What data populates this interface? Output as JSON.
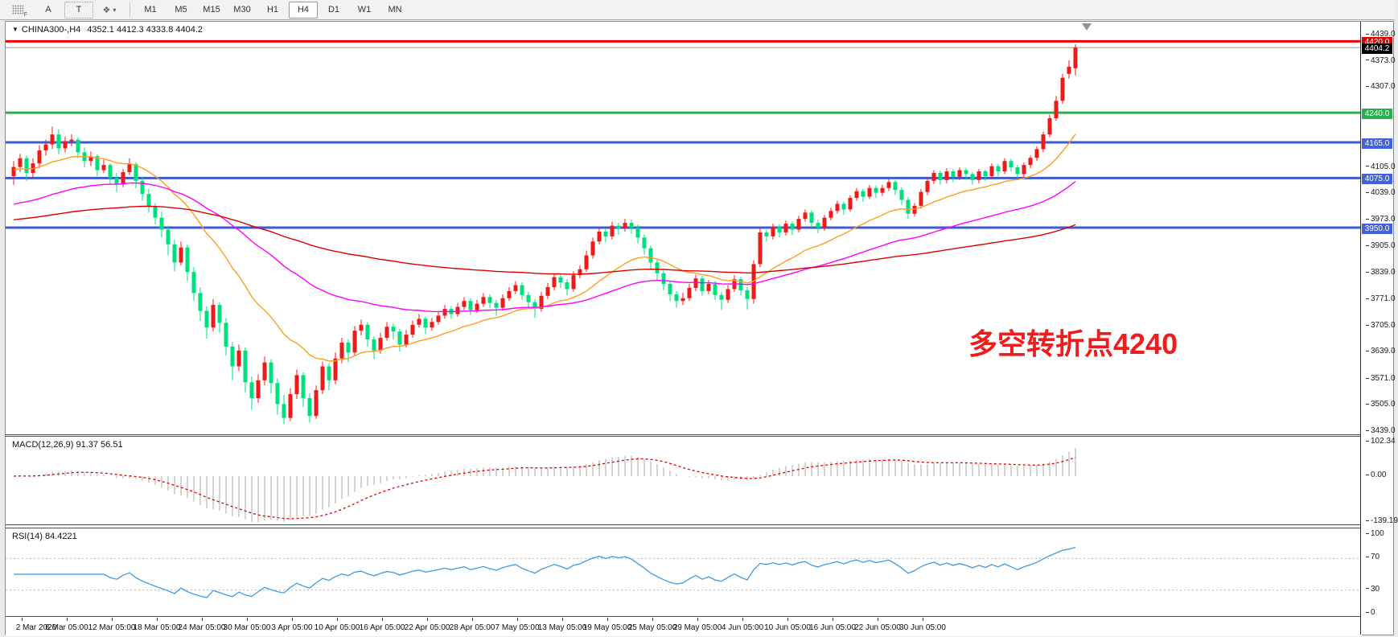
{
  "toolbar": {
    "cursor_label": "A",
    "text_label": "T",
    "style_glyph": "❖",
    "caret_glyph": "▾",
    "timeframes": [
      "M1",
      "M5",
      "M15",
      "M30",
      "H1",
      "H4",
      "D1",
      "W1",
      "MN"
    ],
    "active_timeframe": "H4"
  },
  "chart": {
    "title_symbol": "CHINA300-,H4",
    "title_ohlc": "4352.1 4412.3 4333.8 4404.2",
    "title_caret": "▼",
    "annotation": {
      "text": "多空转折点4240",
      "color": "#ee1c1c"
    },
    "colors": {
      "up": "#ee1a1a",
      "down": "#00df7d",
      "macd_hist": "#c2c2c2",
      "macd_signal": "#e00000",
      "rsi_line": "#3f9be0",
      "level_dotted": "#b8b8b8"
    },
    "hlines": [
      {
        "price": 4420.0,
        "label": "4420.0",
        "color": "#f00000",
        "width": 3,
        "label_bg": "#e00000"
      },
      {
        "price": 4240.0,
        "label": "4240.0",
        "color": "#25b24e",
        "width": 3,
        "label_bg": "#25b24e"
      },
      {
        "price": 4165.0,
        "label": "4165.0",
        "color": "#3c59d6",
        "width": 3,
        "label_bg": "#4161dd"
      },
      {
        "price": 4075.0,
        "label": "4075.0",
        "color": "#3c59d6",
        "width": 3,
        "label_bg": "#4161dd"
      },
      {
        "price": 3950.0,
        "label": "3950.0",
        "color": "#3c59d6",
        "width": 3,
        "label_bg": "#4161dd"
      }
    ],
    "current_price": {
      "price": 4404.2,
      "label": "4404.2",
      "color": "#8a97a3",
      "label_bg": "#000000"
    },
    "price_ticks": [
      "4439.0",
      "4373.0",
      "4307.0",
      "4105.0",
      "4039.0",
      "3973.0",
      "3905.0",
      "3839.0",
      "3771.0",
      "3705.0",
      "3639.0",
      "3571.0",
      "3505.0",
      "3439.0"
    ],
    "moving_averages": [
      {
        "name": "fast-ma",
        "period": 20,
        "seed": 4095,
        "color": "#ff9d1e"
      },
      {
        "name": "mid-ma",
        "period": 55,
        "seed": 4005,
        "color": "#ff00ff"
      },
      {
        "name": "slow-ma",
        "period": 150,
        "seed": 3968,
        "color": "#dd0000"
      }
    ],
    "candles": [
      [
        4080,
        4118,
        4058,
        4103
      ],
      [
        4103,
        4136,
        4090,
        4125
      ],
      [
        4125,
        4132,
        4068,
        4088
      ],
      [
        4088,
        4125,
        4075,
        4112
      ],
      [
        4112,
        4158,
        4100,
        4145
      ],
      [
        4145,
        4172,
        4132,
        4160
      ],
      [
        4160,
        4205,
        4148,
        4185
      ],
      [
        4185,
        4198,
        4135,
        4150
      ],
      [
        4150,
        4180,
        4140,
        4168
      ],
      [
        4168,
        4186,
        4155,
        4172
      ],
      [
        4172,
        4178,
        4125,
        4140
      ],
      [
        4140,
        4152,
        4102,
        4118
      ],
      [
        4118,
        4142,
        4105,
        4130
      ],
      [
        4130,
        4135,
        4080,
        4095
      ],
      [
        4095,
        4122,
        4088,
        4108
      ],
      [
        4108,
        4112,
        4058,
        4075
      ],
      [
        4075,
        4088,
        4040,
        4060
      ],
      [
        4060,
        4098,
        4052,
        4090
      ],
      [
        4090,
        4125,
        4082,
        4110
      ],
      [
        4110,
        4115,
        4050,
        4068
      ],
      [
        4068,
        4078,
        4018,
        4035
      ],
      [
        4035,
        4048,
        3988,
        4005
      ],
      [
        4005,
        4012,
        3958,
        3975
      ],
      [
        3975,
        3990,
        3925,
        3945
      ],
      [
        3945,
        3955,
        3880,
        3908
      ],
      [
        3908,
        3920,
        3840,
        3862
      ],
      [
        3862,
        3915,
        3855,
        3900
      ],
      [
        3900,
        3908,
        3815,
        3838
      ],
      [
        3838,
        3850,
        3765,
        3785
      ],
      [
        3785,
        3800,
        3715,
        3740
      ],
      [
        3740,
        3752,
        3670,
        3698
      ],
      [
        3698,
        3770,
        3688,
        3755
      ],
      [
        3755,
        3762,
        3685,
        3710
      ],
      [
        3710,
        3722,
        3628,
        3650
      ],
      [
        3650,
        3662,
        3565,
        3600
      ],
      [
        3600,
        3655,
        3588,
        3640
      ],
      [
        3640,
        3648,
        3535,
        3560
      ],
      [
        3560,
        3575,
        3490,
        3520
      ],
      [
        3520,
        3580,
        3508,
        3565
      ],
      [
        3565,
        3625,
        3552,
        3610
      ],
      [
        3610,
        3618,
        3532,
        3558
      ],
      [
        3558,
        3570,
        3478,
        3505
      ],
      [
        3505,
        3528,
        3455,
        3470
      ],
      [
        3470,
        3545,
        3462,
        3530
      ],
      [
        3530,
        3592,
        3518,
        3578
      ],
      [
        3578,
        3585,
        3498,
        3520
      ],
      [
        3520,
        3532,
        3458,
        3475
      ],
      [
        3475,
        3552,
        3468,
        3540
      ],
      [
        3540,
        3612,
        3530,
        3600
      ],
      [
        3600,
        3608,
        3540,
        3565
      ],
      [
        3565,
        3635,
        3555,
        3620
      ],
      [
        3620,
        3672,
        3608,
        3660
      ],
      [
        3660,
        3668,
        3610,
        3635
      ],
      [
        3635,
        3702,
        3628,
        3690
      ],
      [
        3690,
        3718,
        3678,
        3705
      ],
      [
        3705,
        3712,
        3650,
        3668
      ],
      [
        3668,
        3676,
        3618,
        3640
      ],
      [
        3640,
        3685,
        3632,
        3672
      ],
      [
        3672,
        3712,
        3665,
        3700
      ],
      [
        3700,
        3708,
        3668,
        3688
      ],
      [
        3688,
        3695,
        3638,
        3655
      ],
      [
        3655,
        3692,
        3648,
        3680
      ],
      [
        3680,
        3716,
        3672,
        3705
      ],
      [
        3705,
        3732,
        3698,
        3720
      ],
      [
        3720,
        3726,
        3682,
        3698
      ],
      [
        3698,
        3722,
        3690,
        3712
      ],
      [
        3712,
        3738,
        3705,
        3728
      ],
      [
        3728,
        3755,
        3720,
        3745
      ],
      [
        3745,
        3752,
        3720,
        3732
      ],
      [
        3732,
        3760,
        3725,
        3750
      ],
      [
        3750,
        3775,
        3742,
        3765
      ],
      [
        3765,
        3772,
        3730,
        3742
      ],
      [
        3742,
        3768,
        3735,
        3758
      ],
      [
        3758,
        3785,
        3750,
        3775
      ],
      [
        3775,
        3782,
        3748,
        3760
      ],
      [
        3760,
        3768,
        3728,
        3748
      ],
      [
        3748,
        3782,
        3740,
        3772
      ],
      [
        3772,
        3800,
        3765,
        3790
      ],
      [
        3790,
        3815,
        3782,
        3805
      ],
      [
        3805,
        3812,
        3768,
        3780
      ],
      [
        3780,
        3788,
        3748,
        3762
      ],
      [
        3762,
        3770,
        3722,
        3745
      ],
      [
        3745,
        3788,
        3738,
        3778
      ],
      [
        3778,
        3810,
        3770,
        3800
      ],
      [
        3800,
        3835,
        3792,
        3825
      ],
      [
        3825,
        3832,
        3798,
        3812
      ],
      [
        3812,
        3820,
        3780,
        3795
      ],
      [
        3795,
        3840,
        3788,
        3830
      ],
      [
        3830,
        3855,
        3822,
        3845
      ],
      [
        3845,
        3892,
        3838,
        3880
      ],
      [
        3880,
        3925,
        3872,
        3915
      ],
      [
        3915,
        3950,
        3908,
        3940
      ],
      [
        3940,
        3948,
        3912,
        3928
      ],
      [
        3928,
        3965,
        3920,
        3955
      ],
      [
        3955,
        3962,
        3932,
        3948
      ],
      [
        3948,
        3972,
        3940,
        3962
      ],
      [
        3962,
        3970,
        3935,
        3950
      ],
      [
        3950,
        3958,
        3910,
        3925
      ],
      [
        3925,
        3932,
        3882,
        3898
      ],
      [
        3898,
        3905,
        3845,
        3862
      ],
      [
        3862,
        3870,
        3818,
        3835
      ],
      [
        3835,
        3842,
        3792,
        3808
      ],
      [
        3808,
        3815,
        3765,
        3782
      ],
      [
        3782,
        3790,
        3748,
        3765
      ],
      [
        3765,
        3786,
        3755,
        3772
      ],
      [
        3772,
        3808,
        3765,
        3798
      ],
      [
        3798,
        3832,
        3790,
        3822
      ],
      [
        3822,
        3828,
        3778,
        3790
      ],
      [
        3790,
        3818,
        3782,
        3808
      ],
      [
        3808,
        3814,
        3768,
        3780
      ],
      [
        3780,
        3788,
        3742,
        3768
      ],
      [
        3768,
        3805,
        3760,
        3795
      ],
      [
        3795,
        3830,
        3788,
        3820
      ],
      [
        3820,
        3826,
        3780,
        3792
      ],
      [
        3792,
        3800,
        3744,
        3770
      ],
      [
        3770,
        3868,
        3758,
        3858
      ],
      [
        3858,
        3948,
        3850,
        3938
      ],
      [
        3938,
        3945,
        3915,
        3928
      ],
      [
        3928,
        3960,
        3920,
        3952
      ],
      [
        3952,
        3958,
        3925,
        3938
      ],
      [
        3938,
        3968,
        3930,
        3960
      ],
      [
        3960,
        3966,
        3932,
        3945
      ],
      [
        3945,
        3980,
        3938,
        3972
      ],
      [
        3972,
        3996,
        3965,
        3988
      ],
      [
        3988,
        3994,
        3950,
        3962
      ],
      [
        3962,
        3970,
        3936,
        3950
      ],
      [
        3950,
        3982,
        3942,
        3975
      ],
      [
        3975,
        4000,
        3968,
        3992
      ],
      [
        3992,
        4018,
        3985,
        4010
      ],
      [
        4010,
        4016,
        3982,
        3996
      ],
      [
        3996,
        4032,
        3990,
        4025
      ],
      [
        4025,
        4050,
        4018,
        4042
      ],
      [
        4042,
        4048,
        4015,
        4028
      ],
      [
        4028,
        4058,
        4022,
        4050
      ],
      [
        4050,
        4056,
        4025,
        4038
      ],
      [
        4038,
        4058,
        4030,
        4050
      ],
      [
        4050,
        4072,
        4042,
        4065
      ],
      [
        4065,
        4070,
        4032,
        4045
      ],
      [
        4045,
        4052,
        4008,
        4020
      ],
      [
        4020,
        4028,
        3972,
        3985
      ],
      [
        3985,
        4012,
        3978,
        4005
      ],
      [
        4005,
        4048,
        3998,
        4040
      ],
      [
        4040,
        4075,
        4032,
        4068
      ],
      [
        4068,
        4095,
        4060,
        4088
      ],
      [
        4088,
        4094,
        4058,
        4070
      ],
      [
        4070,
        4100,
        4062,
        4092
      ],
      [
        4092,
        4098,
        4065,
        4078
      ],
      [
        4078,
        4102,
        4070,
        4095
      ],
      [
        4095,
        4101,
        4072,
        4085
      ],
      [
        4085,
        4090,
        4058,
        4070
      ],
      [
        4070,
        4098,
        4062,
        4092
      ],
      [
        4092,
        4097,
        4068,
        4080
      ],
      [
        4080,
        4112,
        4072,
        4105
      ],
      [
        4105,
        4110,
        4080,
        4092
      ],
      [
        4092,
        4125,
        4085,
        4118
      ],
      [
        4118,
        4124,
        4092,
        4102
      ],
      [
        4102,
        4108,
        4075,
        4085
      ],
      [
        4085,
        4115,
        4078,
        4108
      ],
      [
        4108,
        4132,
        4100,
        4126
      ],
      [
        4126,
        4155,
        4118,
        4148
      ],
      [
        4148,
        4192,
        4140,
        4185
      ],
      [
        4185,
        4235,
        4178,
        4226
      ],
      [
        4226,
        4282,
        4220,
        4270
      ],
      [
        4270,
        4338,
        4262,
        4328
      ],
      [
        4338,
        4372,
        4326,
        4356
      ],
      [
        4352.1,
        4412.3,
        4333.8,
        4404.2
      ]
    ]
  },
  "macd_panel": {
    "header": "MACD(12,26,9) 91.37 56.51",
    "fast": 12,
    "slow": 26,
    "signal": 9,
    "axis": [
      {
        "label": "102.34",
        "v": 102.34
      },
      {
        "label": "0.00",
        "v": 0
      },
      {
        "label": "-139.19",
        "v": -139.19
      }
    ]
  },
  "rsi_panel": {
    "header": "RSI(14) 84.4221",
    "period": 14,
    "levels": [
      70,
      30
    ],
    "axis": [
      {
        "label": "100",
        "v": 100
      },
      {
        "label": "70",
        "v": 70
      },
      {
        "label": "30",
        "v": 30
      },
      {
        "label": "0",
        "v": 0
      }
    ]
  },
  "time_axis": {
    "labels": [
      "2 Mar 2020",
      "6 Mar 05:00",
      "12 Mar 05:00",
      "18 Mar 05:00",
      "24 Mar 05:00",
      "30 Mar 05:00",
      "3 Apr 05:00",
      "10 Apr 05:00",
      "16 Apr 05:00",
      "22 Apr 05:00",
      "28 Apr 05:00",
      "7 May 05:00",
      "13 May 05:00",
      "19 May 05:00",
      "25 May 05:00",
      "29 May 05:00",
      "4 Jun 05:00",
      "10 Jun 05:00",
      "16 Jun 05:00",
      "22 Jun 05:00",
      "30 Jun 05:00"
    ]
  }
}
